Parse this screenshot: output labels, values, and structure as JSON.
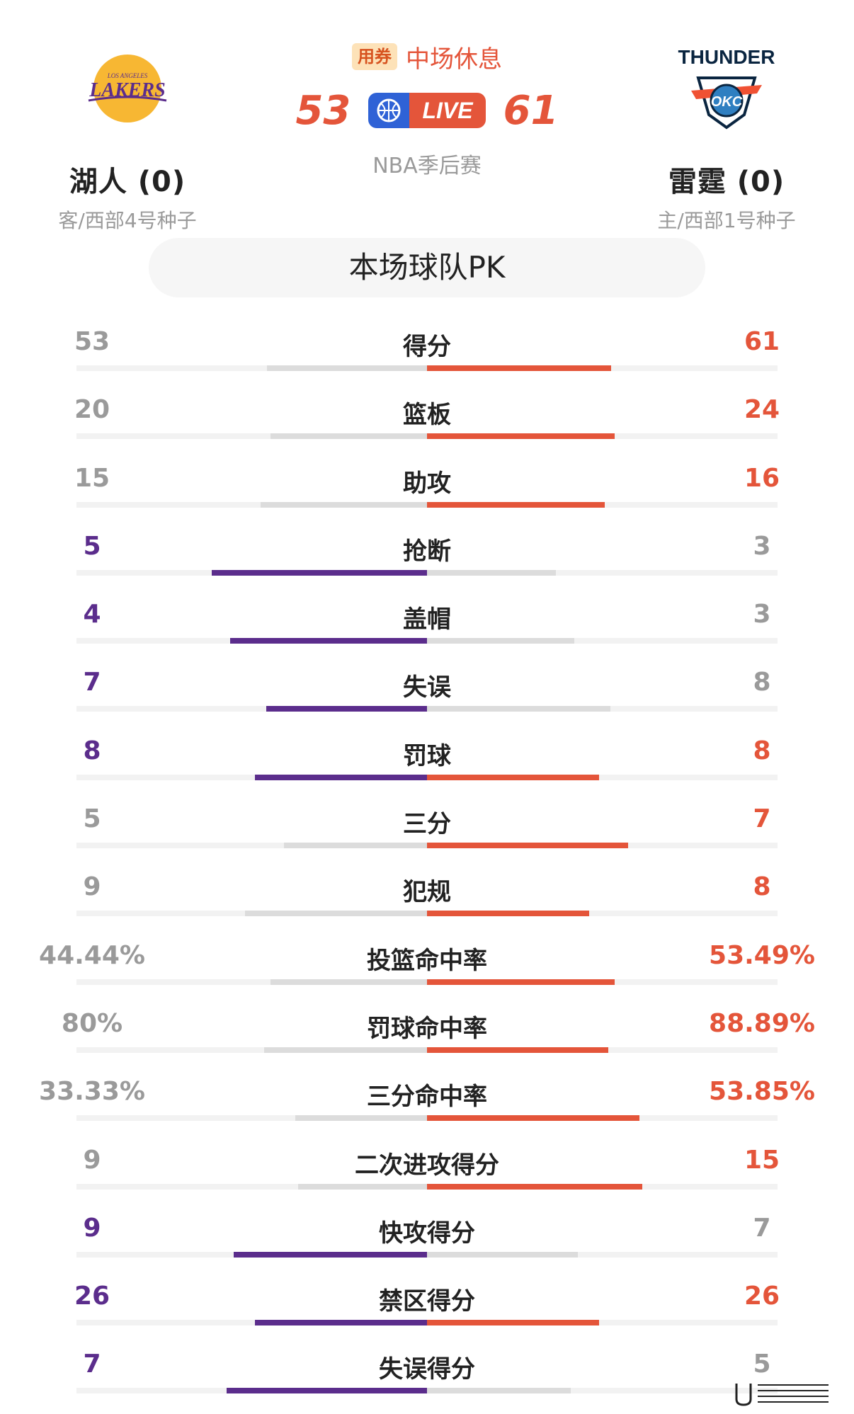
{
  "away_team": {
    "name": "湖人 (0)",
    "seed": "客/西部4号种子",
    "logo_text": "LAKERS",
    "logo_subtext": "LOS ANGELES"
  },
  "home_team": {
    "name": "雷霆 (0)",
    "seed": "主/西部1号种子",
    "logo_text": "THUNDER",
    "logo_badge": "OKC"
  },
  "game": {
    "coupon_label": "用券",
    "status": "中场休息",
    "away_score": "53",
    "home_score": "61",
    "live_label": "LIVE",
    "league": "NBA季后赛"
  },
  "pk_title": "本场球队PK",
  "colors": {
    "away": "#5b2d8c",
    "home": "#e4553a",
    "neutral": "#dcdcdc"
  },
  "stats": [
    {
      "label": "得分",
      "left": "53",
      "right": "61",
      "lnum": 53,
      "rnum": 61,
      "winner": "right"
    },
    {
      "label": "篮板",
      "left": "20",
      "right": "24",
      "lnum": 20,
      "rnum": 24,
      "winner": "right"
    },
    {
      "label": "助攻",
      "left": "15",
      "right": "16",
      "lnum": 15,
      "rnum": 16,
      "winner": "right"
    },
    {
      "label": "抢断",
      "left": "5",
      "right": "3",
      "lnum": 5,
      "rnum": 3,
      "winner": "left"
    },
    {
      "label": "盖帽",
      "left": "4",
      "right": "3",
      "lnum": 4,
      "rnum": 3,
      "winner": "left"
    },
    {
      "label": "失误",
      "left": "7",
      "right": "8",
      "lnum": 7,
      "rnum": 8,
      "winner": "left"
    },
    {
      "label": "罚球",
      "left": "8",
      "right": "8",
      "lnum": 8,
      "rnum": 8,
      "winner": "both"
    },
    {
      "label": "三分",
      "left": "5",
      "right": "7",
      "lnum": 5,
      "rnum": 7,
      "winner": "right"
    },
    {
      "label": "犯规",
      "left": "9",
      "right": "8",
      "lnum": 9,
      "rnum": 8,
      "winner": "right"
    },
    {
      "label": "投篮命中率",
      "left": "44.44%",
      "right": "53.49%",
      "lnum": 44.44,
      "rnum": 53.49,
      "winner": "right"
    },
    {
      "label": "罚球命中率",
      "left": "80%",
      "right": "88.89%",
      "lnum": 80,
      "rnum": 88.89,
      "winner": "right"
    },
    {
      "label": "三分命中率",
      "left": "33.33%",
      "right": "53.85%",
      "lnum": 33.33,
      "rnum": 53.85,
      "winner": "right"
    },
    {
      "label": "二次进攻得分",
      "left": "9",
      "right": "15",
      "lnum": 9,
      "rnum": 15,
      "winner": "right"
    },
    {
      "label": "快攻得分",
      "left": "9",
      "right": "7",
      "lnum": 9,
      "rnum": 7,
      "winner": "left"
    },
    {
      "label": "禁区得分",
      "left": "26",
      "right": "26",
      "lnum": 26,
      "rnum": 26,
      "winner": "both"
    },
    {
      "label": "失误得分",
      "left": "7",
      "right": "5",
      "lnum": 7,
      "rnum": 5,
      "winner": "left"
    }
  ]
}
